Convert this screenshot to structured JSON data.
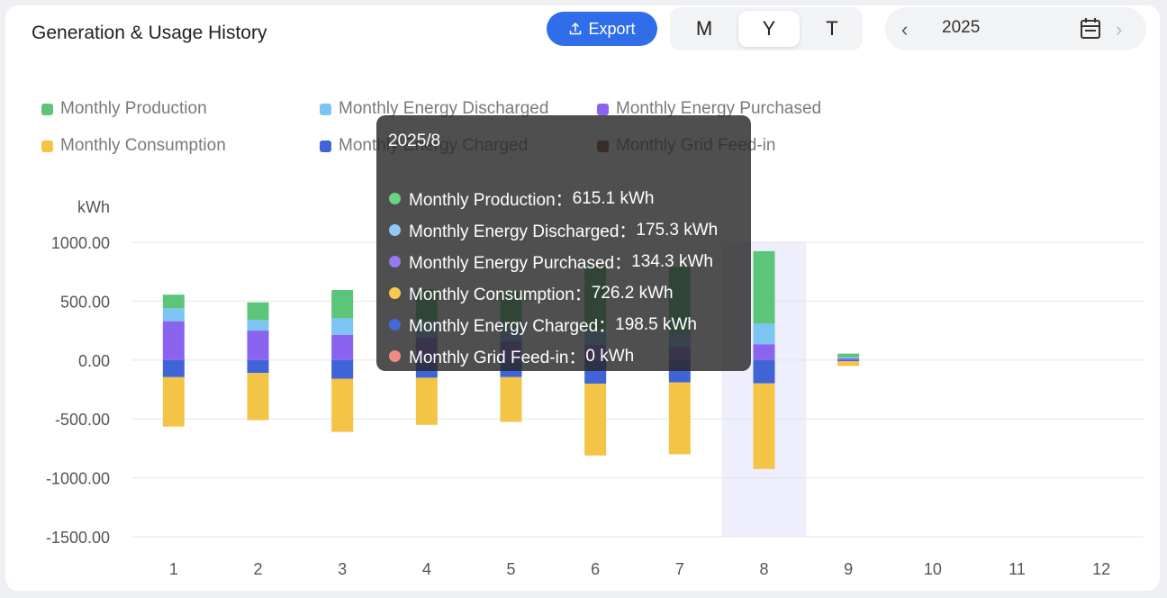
{
  "header": {
    "title": "Generation & Usage History",
    "export_label": "Export",
    "period_tabs": [
      {
        "label": "M",
        "active": false
      },
      {
        "label": "Y",
        "active": true
      },
      {
        "label": "T",
        "active": false
      }
    ],
    "year": "2025",
    "prev_icon": "chevron-left-icon",
    "next_icon": "chevron-right-icon",
    "calendar_icon": "calendar-icon"
  },
  "legend": [
    {
      "name": "Monthly Production",
      "color": "#5cc57a"
    },
    {
      "name": "Monthly Energy Discharged",
      "color": "#7cc4f2"
    },
    {
      "name": "Monthly Energy Purchased",
      "color": "#8a63ef"
    },
    {
      "name": "Monthly Consumption",
      "color": "#f4c447"
    },
    {
      "name": "Monthly Energy Charged",
      "color": "#3f64d8"
    },
    {
      "name": "Monthly Grid Feed-in",
      "color": "#7a3d2a"
    }
  ],
  "tooltip": {
    "title": "2025/8",
    "rows": [
      {
        "label": "Monthly Production：",
        "value": "615.1 kWh",
        "color": "#6bd27e"
      },
      {
        "label": "Monthly Energy Discharged：",
        "value": "175.3 kWh",
        "color": "#8fcaf7"
      },
      {
        "label": "Monthly Energy Purchased：",
        "value": "134.3 kWh",
        "color": "#9677f4"
      },
      {
        "label": "Monthly Consumption：",
        "value": "726.2 kWh",
        "color": "#f6cb4d"
      },
      {
        "label": "Monthly Energy Charged：",
        "value": "198.5 kWh",
        "color": "#4268dc"
      },
      {
        "label": "Monthly Grid Feed-in：",
        "value": "0 kWh",
        "color": "#ef8b80"
      }
    ]
  },
  "chart_data": {
    "type": "bar",
    "stacked": true,
    "ylabel": "kWh",
    "ylim": [
      -1500,
      1000
    ],
    "yticks": [
      "1000.00",
      "500.00",
      "0.00",
      "-500.00",
      "-1000.00",
      "-1500.00"
    ],
    "categories": [
      "1",
      "2",
      "3",
      "4",
      "5",
      "6",
      "7",
      "8",
      "9",
      "10",
      "11",
      "12"
    ],
    "highlight_category": "8",
    "series": [
      {
        "name": "Monthly Energy Purchased",
        "color": "#8a63ef",
        "values": [
          330,
          250,
          215,
          190,
          160,
          130,
          110,
          134.3,
          15,
          0,
          0,
          0
        ]
      },
      {
        "name": "Monthly Energy Discharged",
        "color": "#7cc4f2",
        "values": [
          110,
          90,
          140,
          140,
          130,
          130,
          120,
          175.3,
          10,
          0,
          0,
          0
        ]
      },
      {
        "name": "Monthly Production",
        "color": "#5cc57a",
        "values": [
          115,
          150,
          240,
          270,
          290,
          540,
          560,
          615.1,
          30,
          0,
          0,
          0
        ]
      },
      {
        "name": "Monthly Energy Charged",
        "color": "#3f64d8",
        "values": [
          -145,
          -110,
          -160,
          -150,
          -145,
          -200,
          -190,
          -198.5,
          -10,
          0,
          0,
          0
        ]
      },
      {
        "name": "Monthly Consumption",
        "color": "#f4c447",
        "values": [
          -420,
          -400,
          -450,
          -400,
          -380,
          -610,
          -610,
          -726.2,
          -40,
          0,
          0,
          0
        ]
      },
      {
        "name": "Monthly Grid Feed-in",
        "color": "#7a3d2a",
        "values": [
          0,
          0,
          0,
          0,
          0,
          0,
          0,
          0,
          0,
          0,
          0,
          0
        ]
      }
    ]
  }
}
